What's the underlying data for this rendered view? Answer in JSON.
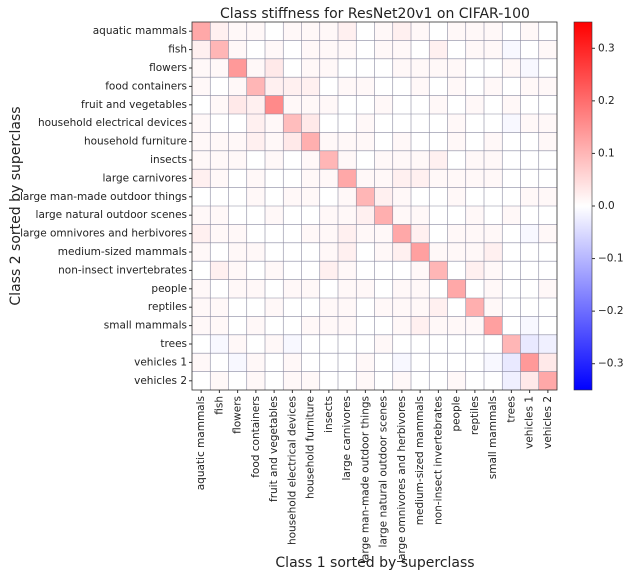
{
  "chart_data": {
    "type": "heatmap",
    "title": "Class stiffness for ResNet20v1 on CIFAR-100",
    "xlabel": "Class 1 sorted by superclass",
    "ylabel": "Class 2 sorted by superclass",
    "categories": [
      "aquatic mammals",
      "fish",
      "flowers",
      "food containers",
      "fruit and vegetables",
      "household electrical devices",
      "household furniture",
      "insects",
      "large carnivores",
      "large man-made outdoor things",
      "large natural outdoor scenes",
      "large omnivores and herbivores",
      "medium-sized mammals",
      "non-insect invertebrates",
      "people",
      "reptiles",
      "small mammals",
      "trees",
      "vehicles 1",
      "vehicles 2"
    ],
    "values": [
      [
        0.12,
        0.02,
        0.01,
        0.01,
        0.0,
        0.01,
        0.01,
        0.01,
        0.02,
        0.0,
        0.01,
        0.02,
        0.01,
        0.0,
        0.01,
        0.01,
        0.01,
        0.0,
        0.01,
        0.0
      ],
      [
        0.02,
        0.1,
        0.01,
        0.0,
        0.01,
        0.0,
        0.01,
        0.01,
        0.01,
        0.0,
        0.01,
        0.01,
        0.0,
        0.02,
        0.0,
        0.01,
        0.01,
        -0.01,
        0.0,
        0.01
      ],
      [
        0.01,
        0.01,
        0.14,
        0.01,
        0.03,
        0.0,
        0.01,
        0.01,
        0.0,
        0.0,
        0.0,
        0.01,
        0.01,
        0.01,
        0.01,
        0.0,
        0.0,
        0.01,
        -0.01,
        0.0
      ],
      [
        0.01,
        0.0,
        0.01,
        0.1,
        0.02,
        0.02,
        0.02,
        0.0,
        0.01,
        0.01,
        0.0,
        0.0,
        0.01,
        0.0,
        0.01,
        0.0,
        0.01,
        0.0,
        0.01,
        0.01
      ],
      [
        0.0,
        0.01,
        0.03,
        0.02,
        0.16,
        0.01,
        0.01,
        0.01,
        0.0,
        0.0,
        0.01,
        0.0,
        0.0,
        0.01,
        0.0,
        0.01,
        0.0,
        0.01,
        0.0,
        0.0
      ],
      [
        0.01,
        0.0,
        0.0,
        0.02,
        0.01,
        0.09,
        0.03,
        0.0,
        0.0,
        0.01,
        0.0,
        0.0,
        0.0,
        0.0,
        0.01,
        0.0,
        0.0,
        -0.01,
        0.01,
        0.01
      ],
      [
        0.01,
        0.01,
        0.01,
        0.02,
        0.01,
        0.03,
        0.11,
        0.01,
        0.01,
        0.01,
        0.0,
        0.01,
        0.0,
        0.0,
        0.01,
        0.0,
        0.01,
        0.0,
        0.0,
        0.01
      ],
      [
        0.01,
        0.01,
        0.01,
        0.0,
        0.01,
        0.0,
        0.01,
        0.1,
        0.01,
        0.0,
        0.01,
        0.01,
        0.01,
        0.02,
        0.0,
        0.01,
        0.01,
        0.0,
        0.0,
        0.0
      ],
      [
        0.02,
        0.01,
        0.0,
        0.01,
        0.0,
        0.0,
        0.01,
        0.01,
        0.12,
        0.01,
        0.01,
        0.02,
        0.02,
        0.01,
        0.01,
        0.01,
        0.01,
        0.0,
        0.0,
        0.0
      ],
      [
        0.0,
        0.0,
        0.0,
        0.01,
        0.0,
        0.01,
        0.01,
        0.0,
        0.01,
        0.1,
        0.02,
        0.01,
        0.0,
        0.0,
        0.01,
        0.0,
        0.0,
        0.0,
        0.01,
        0.01
      ],
      [
        0.01,
        0.01,
        0.0,
        0.0,
        0.01,
        0.0,
        0.0,
        0.01,
        0.01,
        0.02,
        0.11,
        0.01,
        0.01,
        0.0,
        0.0,
        0.01,
        0.0,
        0.01,
        0.0,
        0.0
      ],
      [
        0.02,
        0.01,
        0.01,
        0.0,
        0.0,
        0.0,
        0.01,
        0.01,
        0.02,
        0.01,
        0.01,
        0.12,
        0.02,
        0.0,
        0.01,
        0.01,
        0.01,
        0.0,
        -0.01,
        0.01
      ],
      [
        0.01,
        0.0,
        0.01,
        0.01,
        0.0,
        0.0,
        0.0,
        0.01,
        0.02,
        0.0,
        0.01,
        0.02,
        0.13,
        0.01,
        0.01,
        0.01,
        0.02,
        0.0,
        0.0,
        0.0
      ],
      [
        0.0,
        0.02,
        0.01,
        0.0,
        0.01,
        0.0,
        0.0,
        0.02,
        0.01,
        0.0,
        0.0,
        0.0,
        0.01,
        0.1,
        0.0,
        0.02,
        0.01,
        0.0,
        0.0,
        0.0
      ],
      [
        0.01,
        0.0,
        0.01,
        0.01,
        0.0,
        0.01,
        0.01,
        0.0,
        0.01,
        0.01,
        0.0,
        0.01,
        0.01,
        0.0,
        0.12,
        0.0,
        0.01,
        0.0,
        0.0,
        0.01
      ],
      [
        0.01,
        0.01,
        0.0,
        0.0,
        0.01,
        0.0,
        0.0,
        0.01,
        0.01,
        0.0,
        0.01,
        0.01,
        0.01,
        0.02,
        0.0,
        0.11,
        0.01,
        0.0,
        0.0,
        0.0
      ],
      [
        0.01,
        0.01,
        0.0,
        0.01,
        0.0,
        0.0,
        0.01,
        0.01,
        0.01,
        0.0,
        0.0,
        0.01,
        0.02,
        0.01,
        0.01,
        0.01,
        0.13,
        0.0,
        -0.01,
        0.0
      ],
      [
        0.0,
        -0.01,
        0.01,
        0.0,
        0.01,
        -0.01,
        0.0,
        0.0,
        0.0,
        0.0,
        0.01,
        0.0,
        0.0,
        0.0,
        0.0,
        0.0,
        0.0,
        0.1,
        -0.03,
        -0.02
      ],
      [
        0.01,
        0.0,
        -0.01,
        0.01,
        0.0,
        0.01,
        0.0,
        0.0,
        0.0,
        0.01,
        0.0,
        -0.01,
        0.0,
        0.0,
        0.0,
        0.0,
        -0.01,
        -0.03,
        0.14,
        0.03
      ],
      [
        0.0,
        0.01,
        0.0,
        0.01,
        0.0,
        0.01,
        0.01,
        0.0,
        0.0,
        0.01,
        0.0,
        0.01,
        0.0,
        0.0,
        0.01,
        0.0,
        0.0,
        -0.02,
        0.03,
        0.12
      ]
    ],
    "colormap": [
      "#0000ff",
      "#ffffff",
      "#ff0000"
    ],
    "clim": [
      -0.35,
      0.35
    ],
    "cticks": [
      {
        "value": -0.3,
        "label": "−0.3"
      },
      {
        "value": -0.2,
        "label": "−0.2"
      },
      {
        "value": -0.1,
        "label": "−0.1"
      },
      {
        "value": 0,
        "label": "0.0"
      },
      0.1,
      0.2,
      0.3
    ]
  }
}
